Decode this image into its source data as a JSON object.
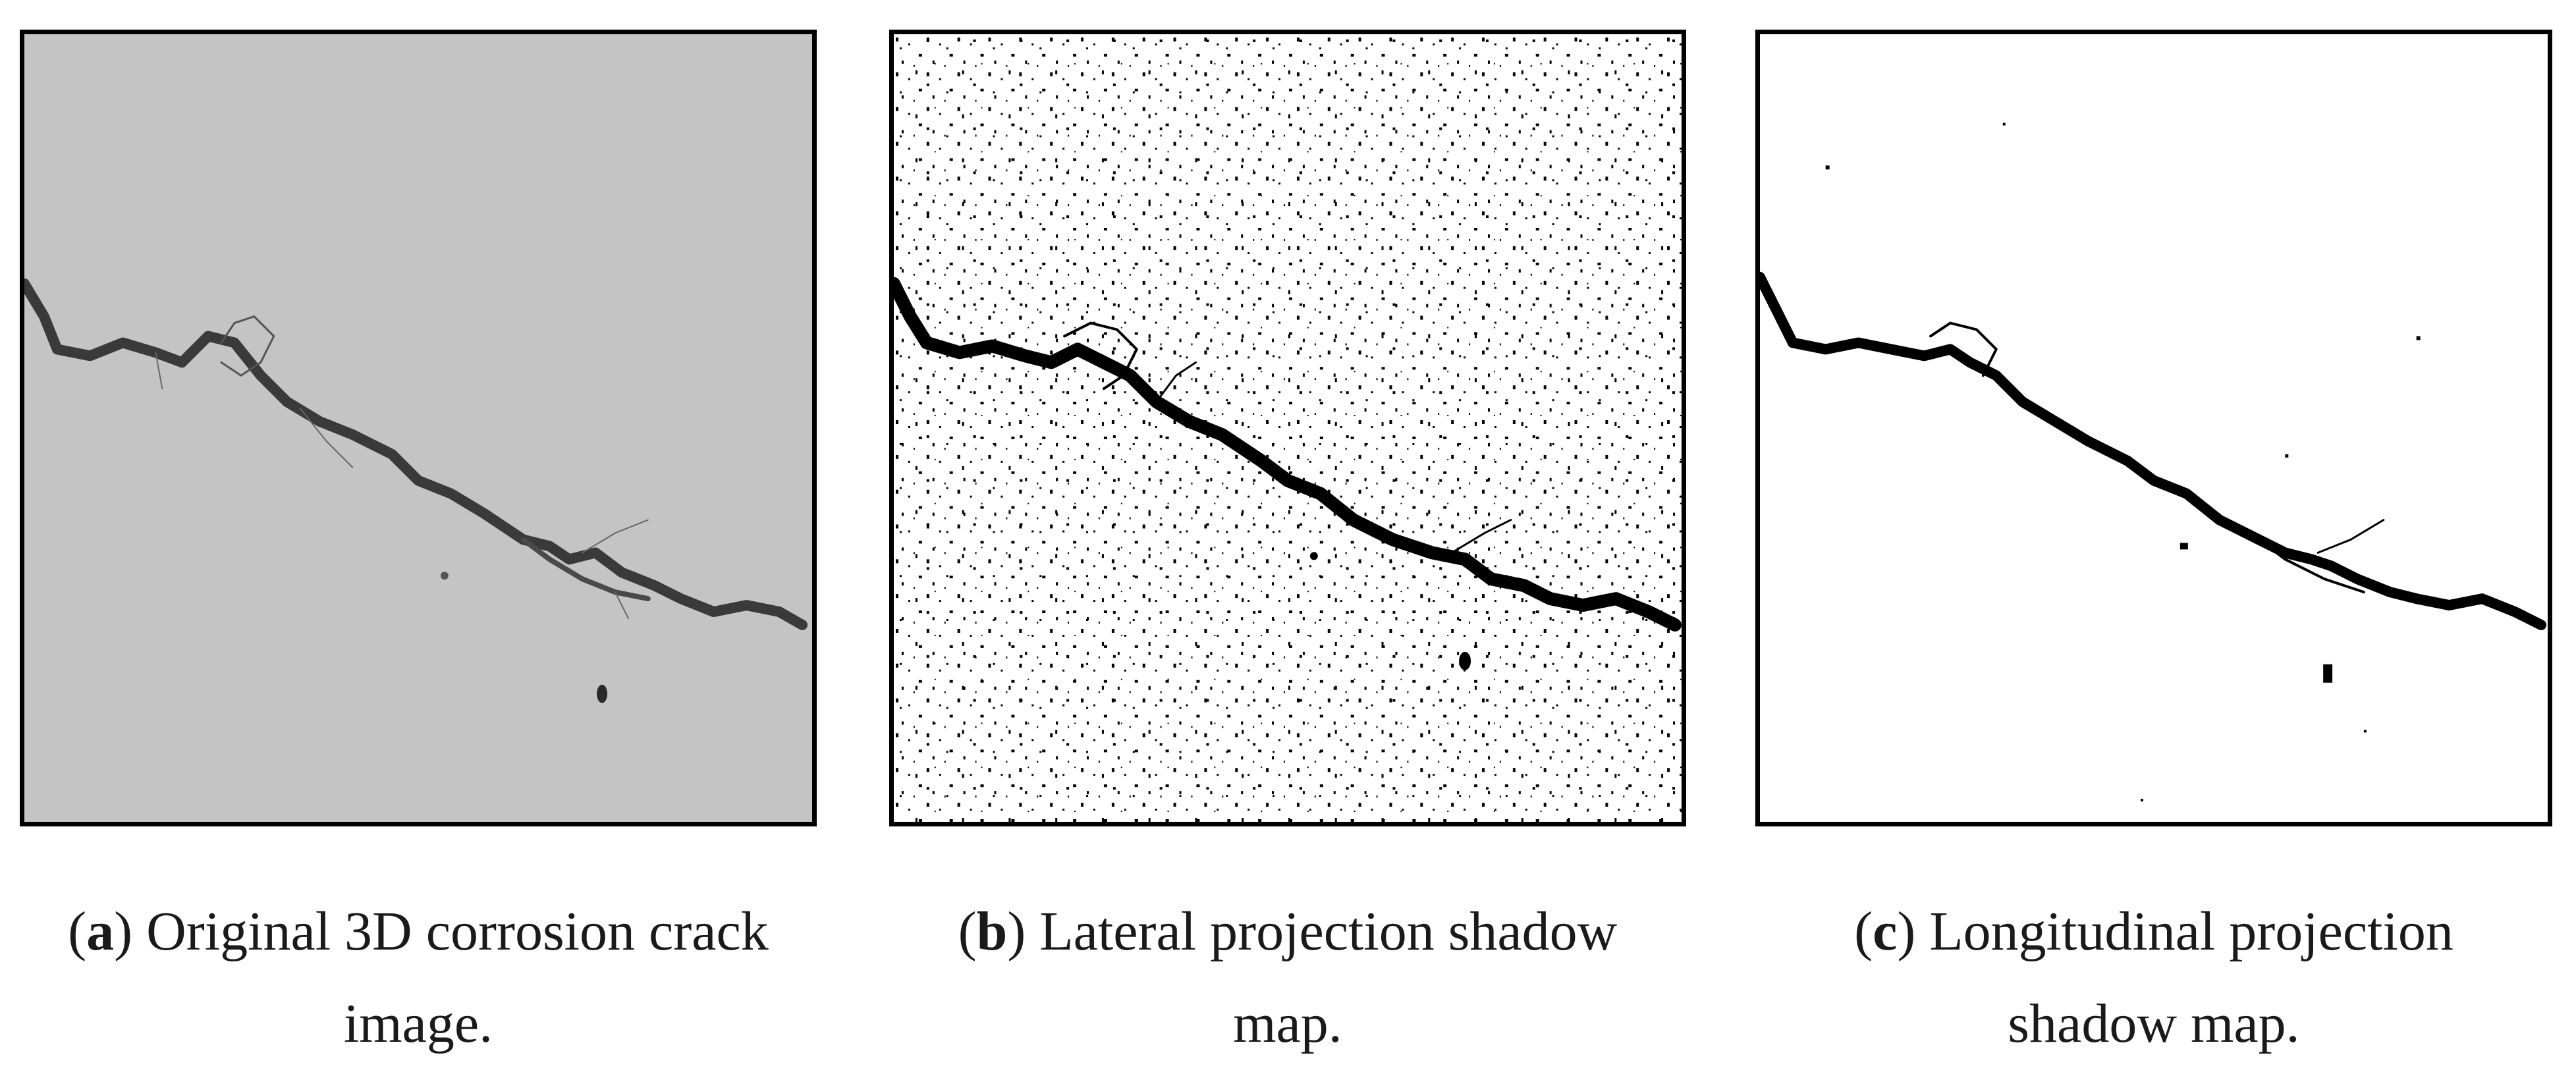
{
  "figure": {
    "panels": [
      {
        "label": "a",
        "caption_line1": ") Original 3D corrosion crack",
        "caption_line2": "image.",
        "image_desc": "grayscale"
      },
      {
        "label": "b",
        "caption_line1": ") Lateral projection shadow",
        "caption_line2": "map.",
        "image_desc": "binary-noisy"
      },
      {
        "label": "c",
        "caption_line1": ") Longitudinal projection",
        "caption_line2": "shadow map.",
        "image_desc": "binary-clean"
      }
    ]
  }
}
